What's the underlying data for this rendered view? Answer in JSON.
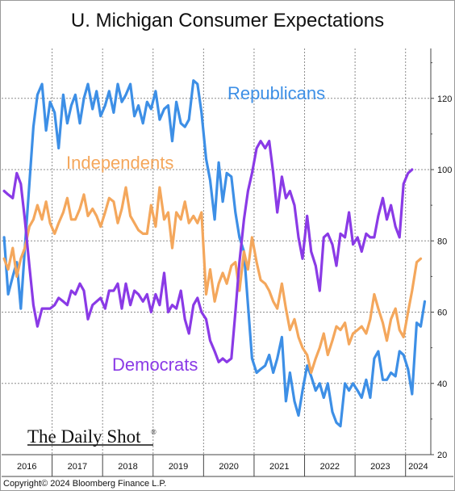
{
  "chart_data": {
    "type": "line",
    "title": "U. Michigan Consumer Expectations",
    "x_ticks": [
      "2016",
      "2017",
      "2018",
      "2019",
      "2020",
      "2021",
      "2022",
      "2023",
      "2024"
    ],
    "y_ticks": [
      20,
      40,
      60,
      80,
      100,
      120
    ],
    "ylim": [
      20,
      134
    ],
    "xlim": [
      2016.0,
      2024.5
    ],
    "y_axis_position": "right",
    "grid": true,
    "legend": "inline labels",
    "series": [
      {
        "name": "Republicans",
        "color": "#3d8fe6",
        "points": [
          [
            2016.05,
            81
          ],
          [
            2016.13,
            65
          ],
          [
            2016.22,
            70
          ],
          [
            2016.3,
            74
          ],
          [
            2016.38,
            61
          ],
          [
            2016.46,
            78
          ],
          [
            2016.55,
            96
          ],
          [
            2016.63,
            112
          ],
          [
            2016.71,
            121
          ],
          [
            2016.8,
            124
          ],
          [
            2016.88,
            111
          ],
          [
            2016.96,
            119
          ],
          [
            2017.05,
            116
          ],
          [
            2017.13,
            106
          ],
          [
            2017.22,
            121
          ],
          [
            2017.3,
            113
          ],
          [
            2017.38,
            118
          ],
          [
            2017.46,
            121
          ],
          [
            2017.55,
            113
          ],
          [
            2017.63,
            120
          ],
          [
            2017.71,
            124
          ],
          [
            2017.8,
            117
          ],
          [
            2017.88,
            122
          ],
          [
            2017.96,
            115
          ],
          [
            2018.05,
            118
          ],
          [
            2018.13,
            122
          ],
          [
            2018.22,
            116
          ],
          [
            2018.3,
            124
          ],
          [
            2018.38,
            119
          ],
          [
            2018.46,
            121
          ],
          [
            2018.55,
            124
          ],
          [
            2018.63,
            115
          ],
          [
            2018.71,
            118
          ],
          [
            2018.8,
            113
          ],
          [
            2018.88,
            119
          ],
          [
            2018.96,
            117
          ],
          [
            2019.05,
            122
          ],
          [
            2019.13,
            114
          ],
          [
            2019.22,
            117
          ],
          [
            2019.3,
            118
          ],
          [
            2019.38,
            108
          ],
          [
            2019.46,
            119
          ],
          [
            2019.55,
            113
          ],
          [
            2019.63,
            112
          ],
          [
            2019.71,
            114
          ],
          [
            2019.8,
            125
          ],
          [
            2019.88,
            124
          ],
          [
            2019.96,
            116
          ],
          [
            2020.05,
            103
          ],
          [
            2020.13,
            97
          ],
          [
            2020.22,
            86
          ],
          [
            2020.3,
            102
          ],
          [
            2020.38,
            91
          ],
          [
            2020.46,
            99
          ],
          [
            2020.55,
            98
          ],
          [
            2020.63,
            88
          ],
          [
            2020.71,
            81
          ],
          [
            2020.8,
            77
          ],
          [
            2020.88,
            62
          ],
          [
            2020.96,
            47
          ],
          [
            2021.05,
            43
          ],
          [
            2021.13,
            44
          ],
          [
            2021.22,
            45
          ],
          [
            2021.3,
            48
          ],
          [
            2021.38,
            43
          ],
          [
            2021.46,
            47
          ],
          [
            2021.55,
            53
          ],
          [
            2021.63,
            35
          ],
          [
            2021.71,
            43
          ],
          [
            2021.8,
            35
          ],
          [
            2021.88,
            31
          ],
          [
            2021.96,
            38
          ],
          [
            2022.05,
            45
          ],
          [
            2022.13,
            42
          ],
          [
            2022.22,
            38
          ],
          [
            2022.3,
            40
          ],
          [
            2022.38,
            36
          ],
          [
            2022.46,
            40
          ],
          [
            2022.55,
            32
          ],
          [
            2022.63,
            29
          ],
          [
            2022.71,
            28
          ],
          [
            2022.8,
            40
          ],
          [
            2022.88,
            38
          ],
          [
            2022.96,
            40
          ],
          [
            2023.05,
            38
          ],
          [
            2023.13,
            36
          ],
          [
            2023.22,
            41
          ],
          [
            2023.3,
            36
          ],
          [
            2023.38,
            47
          ],
          [
            2023.46,
            49
          ],
          [
            2023.55,
            41
          ],
          [
            2023.63,
            41
          ],
          [
            2023.71,
            43
          ],
          [
            2023.8,
            42
          ],
          [
            2023.88,
            49
          ],
          [
            2023.96,
            48
          ],
          [
            2024.05,
            44
          ],
          [
            2024.13,
            37
          ],
          [
            2024.22,
            57
          ],
          [
            2024.3,
            56
          ],
          [
            2024.38,
            63
          ]
        ]
      },
      {
        "name": "Independents",
        "color": "#f4a75c",
        "points": [
          [
            2016.05,
            75
          ],
          [
            2016.13,
            72
          ],
          [
            2016.22,
            78
          ],
          [
            2016.3,
            70
          ],
          [
            2016.38,
            75
          ],
          [
            2016.46,
            78
          ],
          [
            2016.55,
            84
          ],
          [
            2016.63,
            86
          ],
          [
            2016.71,
            90
          ],
          [
            2016.8,
            86
          ],
          [
            2016.88,
            91
          ],
          [
            2016.96,
            85
          ],
          [
            2017.05,
            82
          ],
          [
            2017.13,
            85
          ],
          [
            2017.22,
            88
          ],
          [
            2017.3,
            92
          ],
          [
            2017.38,
            86
          ],
          [
            2017.46,
            86
          ],
          [
            2017.55,
            89
          ],
          [
            2017.63,
            93
          ],
          [
            2017.71,
            87
          ],
          [
            2017.8,
            89
          ],
          [
            2017.88,
            87
          ],
          [
            2017.96,
            84
          ],
          [
            2018.05,
            88
          ],
          [
            2018.13,
            92
          ],
          [
            2018.22,
            91
          ],
          [
            2018.3,
            85
          ],
          [
            2018.38,
            89
          ],
          [
            2018.46,
            95
          ],
          [
            2018.55,
            87
          ],
          [
            2018.63,
            85
          ],
          [
            2018.71,
            83
          ],
          [
            2018.8,
            82
          ],
          [
            2018.88,
            82
          ],
          [
            2018.96,
            90
          ],
          [
            2019.05,
            84
          ],
          [
            2019.13,
            95
          ],
          [
            2019.22,
            86
          ],
          [
            2019.3,
            88
          ],
          [
            2019.38,
            78
          ],
          [
            2019.46,
            88
          ],
          [
            2019.55,
            86
          ],
          [
            2019.63,
            91
          ],
          [
            2019.71,
            85
          ],
          [
            2019.8,
            87
          ],
          [
            2019.88,
            85
          ],
          [
            2019.96,
            88
          ],
          [
            2020.05,
            65
          ],
          [
            2020.13,
            72
          ],
          [
            2020.22,
            63
          ],
          [
            2020.3,
            68
          ],
          [
            2020.38,
            71
          ],
          [
            2020.46,
            68
          ],
          [
            2020.55,
            73
          ],
          [
            2020.63,
            74
          ],
          [
            2020.71,
            66
          ],
          [
            2020.8,
            77
          ],
          [
            2020.88,
            72
          ],
          [
            2020.96,
            81
          ],
          [
            2021.05,
            74
          ],
          [
            2021.13,
            69
          ],
          [
            2021.22,
            68
          ],
          [
            2021.3,
            66
          ],
          [
            2021.38,
            63
          ],
          [
            2021.46,
            61
          ],
          [
            2021.55,
            68
          ],
          [
            2021.63,
            61
          ],
          [
            2021.71,
            55
          ],
          [
            2021.8,
            58
          ],
          [
            2021.88,
            53
          ],
          [
            2021.96,
            50
          ],
          [
            2022.05,
            48
          ],
          [
            2022.13,
            43
          ],
          [
            2022.22,
            47
          ],
          [
            2022.3,
            50
          ],
          [
            2022.38,
            54
          ],
          [
            2022.46,
            48
          ],
          [
            2022.55,
            52
          ],
          [
            2022.63,
            56
          ],
          [
            2022.71,
            55
          ],
          [
            2022.8,
            57
          ],
          [
            2022.88,
            51
          ],
          [
            2022.96,
            54
          ],
          [
            2023.05,
            55
          ],
          [
            2023.13,
            56
          ],
          [
            2023.22,
            54
          ],
          [
            2023.3,
            58
          ],
          [
            2023.38,
            65
          ],
          [
            2023.46,
            61
          ],
          [
            2023.55,
            57
          ],
          [
            2023.63,
            52
          ],
          [
            2023.71,
            58
          ],
          [
            2023.8,
            61
          ],
          [
            2023.88,
            55
          ],
          [
            2023.96,
            53
          ],
          [
            2024.05,
            60
          ],
          [
            2024.13,
            66
          ],
          [
            2024.22,
            74
          ],
          [
            2024.3,
            75
          ]
        ]
      },
      {
        "name": "Democrats",
        "color": "#8a3ae6",
        "points": [
          [
            2016.05,
            94
          ],
          [
            2016.13,
            93
          ],
          [
            2016.22,
            92
          ],
          [
            2016.3,
            99
          ],
          [
            2016.38,
            96
          ],
          [
            2016.46,
            86
          ],
          [
            2016.55,
            73
          ],
          [
            2016.63,
            62
          ],
          [
            2016.71,
            56
          ],
          [
            2016.8,
            61
          ],
          [
            2016.88,
            61
          ],
          [
            2016.96,
            61
          ],
          [
            2017.05,
            62
          ],
          [
            2017.13,
            64
          ],
          [
            2017.22,
            63
          ],
          [
            2017.3,
            62
          ],
          [
            2017.38,
            66
          ],
          [
            2017.46,
            65
          ],
          [
            2017.55,
            68
          ],
          [
            2017.63,
            66
          ],
          [
            2017.71,
            58
          ],
          [
            2017.8,
            62
          ],
          [
            2017.88,
            63
          ],
          [
            2017.96,
            64
          ],
          [
            2018.05,
            61
          ],
          [
            2018.13,
            66
          ],
          [
            2018.22,
            66
          ],
          [
            2018.3,
            68
          ],
          [
            2018.38,
            61
          ],
          [
            2018.46,
            68
          ],
          [
            2018.55,
            62
          ],
          [
            2018.63,
            66
          ],
          [
            2018.71,
            65
          ],
          [
            2018.8,
            63
          ],
          [
            2018.88,
            65
          ],
          [
            2018.96,
            60
          ],
          [
            2019.05,
            65
          ],
          [
            2019.13,
            62
          ],
          [
            2019.22,
            71
          ],
          [
            2019.3,
            60
          ],
          [
            2019.38,
            62
          ],
          [
            2019.46,
            61
          ],
          [
            2019.55,
            66
          ],
          [
            2019.63,
            58
          ],
          [
            2019.71,
            54
          ],
          [
            2019.8,
            62
          ],
          [
            2019.88,
            64
          ],
          [
            2019.96,
            60
          ],
          [
            2020.05,
            58
          ],
          [
            2020.13,
            52
          ],
          [
            2020.22,
            49
          ],
          [
            2020.3,
            46
          ],
          [
            2020.38,
            47
          ],
          [
            2020.46,
            46
          ],
          [
            2020.55,
            47
          ],
          [
            2020.63,
            60
          ],
          [
            2020.71,
            74
          ],
          [
            2020.8,
            86
          ],
          [
            2020.88,
            94
          ],
          [
            2020.96,
            99
          ],
          [
            2021.05,
            106
          ],
          [
            2021.13,
            108
          ],
          [
            2021.22,
            106
          ],
          [
            2021.3,
            108
          ],
          [
            2021.38,
            99
          ],
          [
            2021.46,
            88
          ],
          [
            2021.55,
            98
          ],
          [
            2021.63,
            92
          ],
          [
            2021.71,
            94
          ],
          [
            2021.8,
            90
          ],
          [
            2021.88,
            81
          ],
          [
            2021.96,
            75
          ],
          [
            2022.05,
            87
          ],
          [
            2022.13,
            77
          ],
          [
            2022.22,
            73
          ],
          [
            2022.3,
            66
          ],
          [
            2022.38,
            81
          ],
          [
            2022.46,
            82
          ],
          [
            2022.55,
            79
          ],
          [
            2022.63,
            73
          ],
          [
            2022.71,
            82
          ],
          [
            2022.8,
            81
          ],
          [
            2022.88,
            88
          ],
          [
            2022.96,
            79
          ],
          [
            2023.05,
            81
          ],
          [
            2023.13,
            77
          ],
          [
            2023.22,
            82
          ],
          [
            2023.3,
            81
          ],
          [
            2023.38,
            81
          ],
          [
            2023.46,
            87
          ],
          [
            2023.55,
            92
          ],
          [
            2023.63,
            86
          ],
          [
            2023.71,
            90
          ],
          [
            2023.8,
            84
          ],
          [
            2023.88,
            81
          ],
          [
            2023.96,
            96
          ],
          [
            2024.05,
            99
          ],
          [
            2024.13,
            100
          ]
        ]
      }
    ]
  },
  "branding": {
    "logo_text": "The Daily Shot",
    "logo_mark": "®"
  },
  "footer": {
    "copyright": "Copyright© 2024 Bloomberg Finance L.P."
  }
}
